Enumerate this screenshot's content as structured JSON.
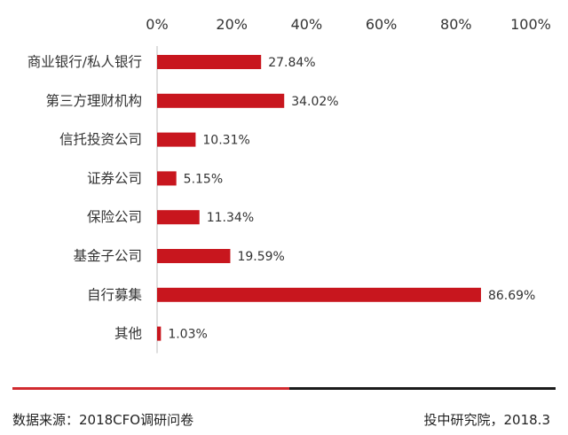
{
  "chart_data": {
    "type": "bar",
    "orientation": "horizontal",
    "categories": [
      "商业银行/私人银行",
      "第三方理财机构",
      "信托投资公司",
      "证券公司",
      "保险公司",
      "基金子公司",
      "自行募集",
      "其他"
    ],
    "values": [
      27.84,
      34.02,
      10.31,
      5.15,
      11.34,
      19.59,
      86.69,
      1.03
    ],
    "value_labels": [
      "27.84%",
      "34.02%",
      "10.31%",
      "5.15%",
      "11.34%",
      "19.59%",
      "86.69%",
      "1.03%"
    ],
    "x_ticks": [
      "0%",
      "20%",
      "40%",
      "60%",
      "80%",
      "100%"
    ],
    "xlim": [
      0,
      100
    ],
    "bar_color": "#c8161e",
    "grid": false,
    "axis_position": "top"
  },
  "footer": {
    "source": "数据来源：2018CFO调研问卷",
    "credit": "投中研究院，2018.3",
    "accent_color": "#d12a2f"
  }
}
